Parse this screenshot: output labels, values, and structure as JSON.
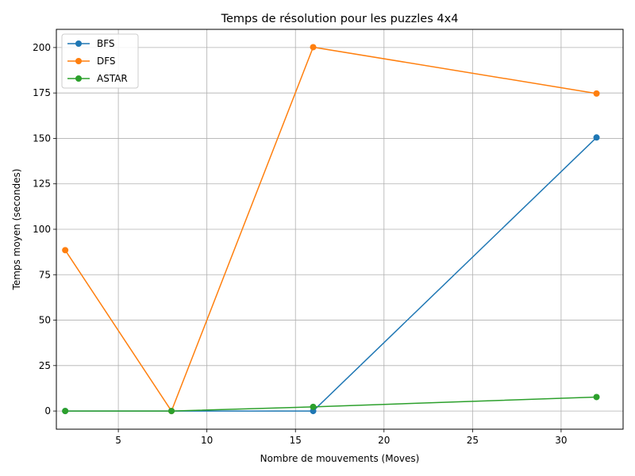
{
  "chart_data": {
    "type": "line",
    "title": "Temps de résolution pour les puzzles 4x4",
    "xlabel": "Nombre de mouvements (Moves)",
    "ylabel": "Temps moyen (secondes)",
    "xlim": [
      1.5,
      33.5
    ],
    "ylim": [
      -10,
      210
    ],
    "xticks": [
      5,
      10,
      15,
      20,
      25,
      30
    ],
    "yticks": [
      0,
      25,
      50,
      75,
      100,
      125,
      150,
      175,
      200
    ],
    "grid": true,
    "legend_position": "top-left",
    "x": [
      2,
      8,
      16,
      32
    ],
    "series": [
      {
        "name": "BFS",
        "color": "#1f77b4",
        "values": [
          0,
          0,
          0,
          150.5
        ]
      },
      {
        "name": "DFS",
        "color": "#ff7f0e",
        "values": [
          88.5,
          0,
          200.2,
          174.7
        ]
      },
      {
        "name": "ASTAR",
        "color": "#2ca02c",
        "values": [
          0,
          0,
          2.3,
          7.7
        ]
      }
    ]
  }
}
